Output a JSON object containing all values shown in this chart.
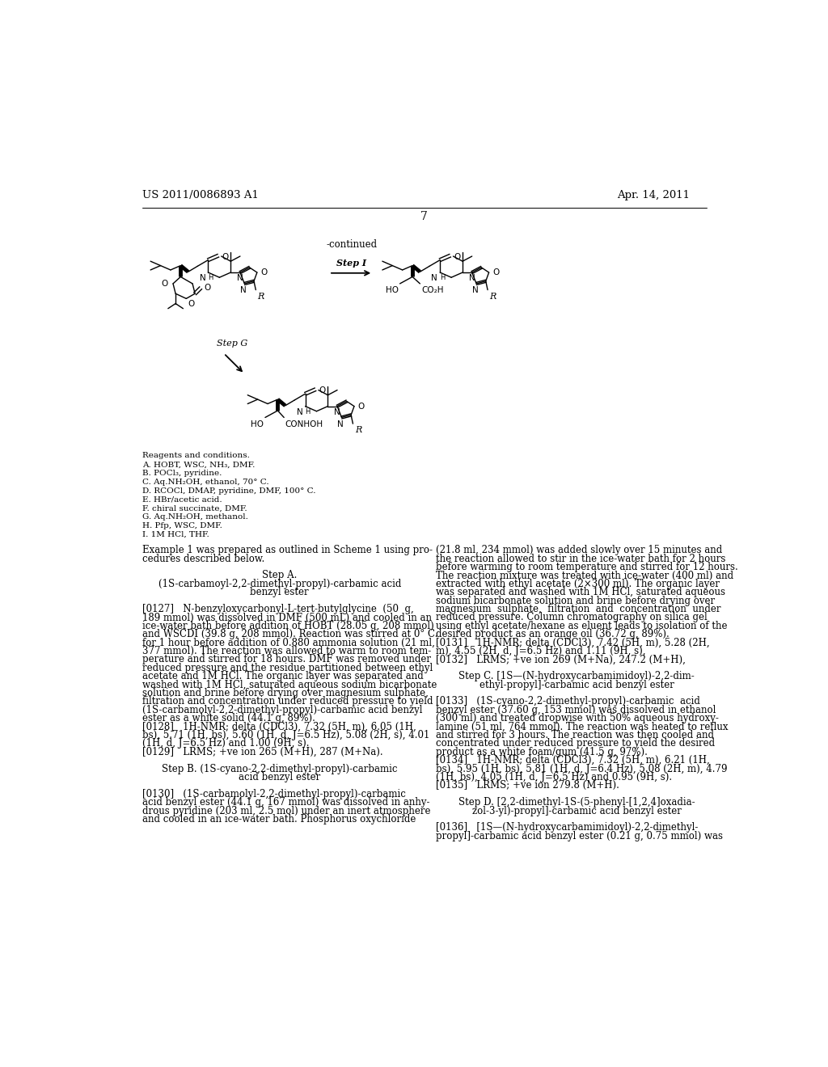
{
  "page_number": "7",
  "header_left": "US 2011/0086893 A1",
  "header_right": "Apr. 14, 2011",
  "continued_label": "-continued",
  "background_color": "#ffffff",
  "text_color": "#000000",
  "reagents_conditions": [
    "Reagents and conditions.",
    "A. HOBT, WSC, NH₃, DMF.",
    "B. POCl₃, pyridine.",
    "C. Aq.NH₂OH, ethanol, 70° C.",
    "D. RCOCl, DMAP, pyridine, DMF, 100° C.",
    "E. HBr/acetic acid.",
    "F. chiral succinate, DMF.",
    "G. Aq.NH₂OH, methanol.",
    "H. Pfp, WSC, DMF.",
    "I. 1M HCl, THF."
  ],
  "body_text_left": [
    "Example 1 was prepared as outlined in Scheme 1 using pro-",
    "cedures described below.",
    "",
    "Step A.",
    "(1S-carbamoyl-2,2-dimethyl-propyl)-carbamic acid",
    "benzyl ester",
    "",
    "[0127]   N-benzyloxycarbonyl-L-tert-butylglycine  (50  g,",
    "189 mmol) was dissolved in DMF (500 mL) and cooled in an",
    "ice-water bath before addition of HOBT (28.05 g, 208 mmol)",
    "and WSCDI (39.8 g, 208 mmol). Reaction was stirred at 0° C.",
    "for 1 hour before addition of 0.880 ammonia solution (21 ml,",
    "377 mmol). The reaction was allowed to warm to room tem-",
    "perature and stirred for 18 hours. DMF was removed under",
    "reduced pressure and the residue partitioned between ethyl",
    "acetate and 1M HCl. The organic layer was separated and",
    "washed with 1M HCl, saturated aqueous sodium bicarbonate",
    "solution and brine before drying over magnesium sulphate,",
    "filtration and concentration under reduced pressure to yield",
    "(1S-carbamolyl-2,2-dimethyl-propyl)-carbamic acid benzyl",
    "ester as a white solid (44.1 g, 89%).",
    "[0128]   1H-NMR; delta (CDCl3), 7.32 (5H, m), 6.05 (1H,",
    "bs), 5.71 (1H, bs), 5.60 (1H, d, J=6.5 Hz), 5.08 (2H, s), 4.01",
    "(1H, d, J=6.5 Hz) and 1.00 (9H, s).",
    "[0129]   LRMS; +ve ion 265 (M+H), 287 (M+Na).",
    "",
    "Step B. (1S-cyano-2,2-dimethyl-propyl)-carbamic",
    "acid benzyl ester",
    "",
    "[0130]   (1S-carbamolyl-2,2-dimethyl-propyl)-carbamic",
    "acid benzyl ester (44.1 g, 167 mmol) was dissolved in anhy-",
    "drous pyridine (203 ml, 2.5 mol) under an inert atmosphere",
    "and cooled in an ice-water bath. Phosphorus oxychloride"
  ],
  "body_text_right": [
    "(21.8 ml, 234 mmol) was added slowly over 15 minutes and",
    "the reaction allowed to stir in the ice-water bath for 2 hours",
    "before warming to room temperature and stirred for 12 hours.",
    "The reaction mixture was treated with ice-water (400 ml) and",
    "extracted with ethyl acetate (2×300 ml). The organic layer",
    "was separated and washed with 1M HCl, saturated aqueous",
    "sodium bicarbonate solution and brine before drying over",
    "magnesium  sulphate,  filtration  and  concentration  under",
    "reduced pressure. Column chromatography on silica gel",
    "using ethyl acetate/hexane as eluent leads to isolation of the",
    "desired product as an orange oil (36.72 g, 89%).",
    "[0131]   1H-NMR; delta (CDCl3), 7.42 (5H, m), 5.28 (2H,",
    "m), 4.55 (2H, d, J=6.5 Hz) and 1.11 (9H, s),",
    "[0132]   LRMS; +ve ion 269 (M+Na), 247.2 (M+H),",
    "",
    "Step C. [1S—(N-hydroxycarbamimidoyl)-2,2-dim-",
    "ethyl-propyl]-carbamic acid benzyl ester",
    "",
    "[0133]   (1S-cyano-2,2-dimethyl-propyl)-carbamic  acid",
    "benzyl ester (37.60 g, 153 mmol) was dissolved in ethanol",
    "(300 ml) and treated dropwise with 50% aqueous hydroxy-",
    "lamine (51 ml, 764 mmol). The reaction was heated to reflux",
    "and stirred for 3 hours. The reaction was then cooled and",
    "concentrated under reduced pressure to yield the desired",
    "product as a white foam/gum (41.5 g, 97%).",
    "[0134]   1H-NMR; delta (CDCl3), 7.32 (5H, m), 6.21 (1H,",
    "bs), 5.95 (1H, bs), 5.81 (1H, d, J=6.4 Hz), 5.08 (2H, m), 4.79",
    "(1H, bs), 4.05 (1H, d, J=6.5 Hz) and 0.95 (9H, s).",
    "[0135]   LRMS; +ve ion 279.8 (M+H).",
    "",
    "Step D. [2,2-dimethyl-1S-(5-phenyl-[1,2,4]oxadia-",
    "zol-3-yl)-propyl]-carbamic acid benzyl ester",
    "",
    "[0136]   [1S—(N-hydroxycarbamimidoyl)-2,2-dimethyl-",
    "propyl]-carbamic acid benzyl ester (0.21 g, 0.75 mmol) was"
  ]
}
